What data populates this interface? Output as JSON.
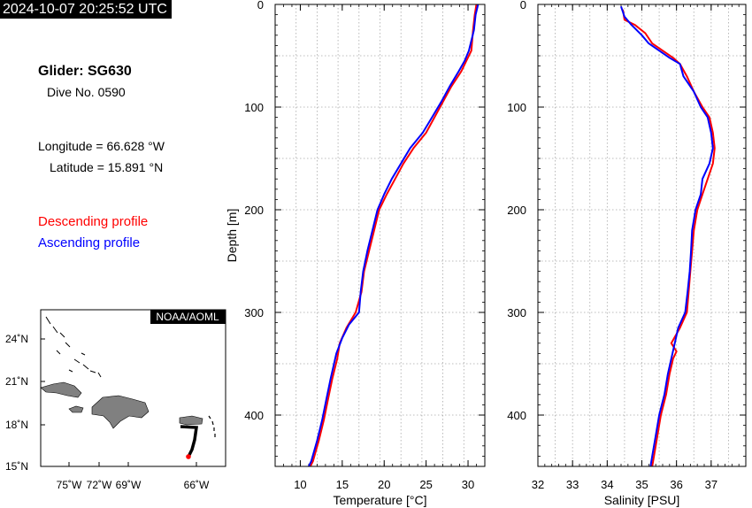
{
  "header": {
    "timestamp": "2024-10-07 20:25:52 UTC",
    "glider_label": "Glider: SG630",
    "dive_label": "Dive No. 0590",
    "longitude_label": "Longitude = 66.628 °W",
    "latitude_label": "Latitude = 15.891 °N"
  },
  "legend": {
    "descending": "Descending profile",
    "ascending": "Ascending profile"
  },
  "colors": {
    "descending": "#ff0000",
    "ascending": "#0000ff",
    "land": "#808080",
    "track": "#000000"
  },
  "map": {
    "badge": "NOAA/AOML",
    "lon_ticks": [
      "75˚W",
      "72˚W",
      "69˚W",
      "66˚W"
    ],
    "lat_ticks": [
      "24˚N",
      "21˚N",
      "18˚N",
      "15˚N"
    ]
  },
  "chart_data": [
    {
      "type": "line",
      "xlabel": "Temperature [°C]",
      "ylabel": "Depth [m]",
      "xlim": [
        7,
        32
      ],
      "ylim": [
        450,
        0
      ],
      "x_ticks": [
        10,
        15,
        20,
        25,
        30
      ],
      "y_ticks": [
        0,
        100,
        200,
        300,
        400
      ],
      "grid": true,
      "series": [
        {
          "name": "Descending profile",
          "color": "#ff0000",
          "points": [
            [
              31.0,
              0
            ],
            [
              30.8,
              10
            ],
            [
              30.6,
              25
            ],
            [
              30.4,
              45
            ],
            [
              29.8,
              55
            ],
            [
              29.2,
              65
            ],
            [
              28.0,
              80
            ],
            [
              27.0,
              95
            ],
            [
              26.0,
              110
            ],
            [
              25.0,
              125
            ],
            [
              23.5,
              140
            ],
            [
              22.3,
              155
            ],
            [
              21.3,
              170
            ],
            [
              20.3,
              185
            ],
            [
              19.4,
              200
            ],
            [
              18.8,
              220
            ],
            [
              18.2,
              240
            ],
            [
              17.6,
              260
            ],
            [
              17.3,
              280
            ],
            [
              16.6,
              300
            ],
            [
              15.5,
              315
            ],
            [
              14.7,
              330
            ],
            [
              14.4,
              345
            ],
            [
              13.8,
              365
            ],
            [
              13.3,
              385
            ],
            [
              12.8,
              405
            ],
            [
              12.2,
              425
            ],
            [
              11.5,
              445
            ],
            [
              11.2,
              450
            ]
          ]
        },
        {
          "name": "Ascending profile",
          "color": "#0000ff",
          "points": [
            [
              31.2,
              0
            ],
            [
              30.9,
              10
            ],
            [
              30.7,
              25
            ],
            [
              30.1,
              45
            ],
            [
              29.6,
              55
            ],
            [
              28.9,
              65
            ],
            [
              27.8,
              80
            ],
            [
              26.8,
              95
            ],
            [
              25.7,
              110
            ],
            [
              24.6,
              125
            ],
            [
              23.1,
              140
            ],
            [
              22.0,
              155
            ],
            [
              20.9,
              170
            ],
            [
              20.0,
              185
            ],
            [
              19.2,
              200
            ],
            [
              18.6,
              220
            ],
            [
              18.0,
              240
            ],
            [
              17.5,
              260
            ],
            [
              17.2,
              280
            ],
            [
              17.0,
              300
            ],
            [
              15.8,
              312
            ],
            [
              15.0,
              325
            ],
            [
              14.3,
              340
            ],
            [
              13.6,
              365
            ],
            [
              13.1,
              385
            ],
            [
              12.6,
              405
            ],
            [
              12.0,
              425
            ],
            [
              11.3,
              445
            ],
            [
              11.0,
              450
            ]
          ]
        }
      ]
    },
    {
      "type": "line",
      "xlabel": "Salinity [PSU]",
      "ylabel": "",
      "xlim": [
        32,
        38
      ],
      "ylim": [
        450,
        0
      ],
      "x_ticks": [
        32,
        33,
        34,
        35,
        36,
        37
      ],
      "y_ticks": [
        0,
        100,
        200,
        300,
        400
      ],
      "grid": true,
      "series": [
        {
          "name": "Descending profile",
          "color": "#ff0000",
          "points": [
            [
              34.45,
              5
            ],
            [
              34.5,
              15
            ],
            [
              34.8,
              20
            ],
            [
              35.1,
              28
            ],
            [
              35.3,
              38
            ],
            [
              35.6,
              45
            ],
            [
              35.9,
              52
            ],
            [
              36.1,
              58
            ],
            [
              36.3,
              70
            ],
            [
              36.5,
              85
            ],
            [
              36.75,
              100
            ],
            [
              36.95,
              110
            ],
            [
              37.05,
              125
            ],
            [
              37.1,
              140
            ],
            [
              37.05,
              155
            ],
            [
              36.9,
              170
            ],
            [
              36.75,
              185
            ],
            [
              36.6,
              200
            ],
            [
              36.5,
              220
            ],
            [
              36.45,
              240
            ],
            [
              36.4,
              260
            ],
            [
              36.35,
              280
            ],
            [
              36.3,
              300
            ],
            [
              36.1,
              315
            ],
            [
              35.85,
              330
            ],
            [
              36.0,
              338
            ],
            [
              35.9,
              345
            ],
            [
              35.8,
              360
            ],
            [
              35.7,
              380
            ],
            [
              35.55,
              400
            ],
            [
              35.45,
              420
            ],
            [
              35.35,
              440
            ],
            [
              35.3,
              450
            ]
          ]
        },
        {
          "name": "Ascending profile",
          "color": "#0000ff",
          "points": [
            [
              34.4,
              2
            ],
            [
              34.5,
              12
            ],
            [
              34.7,
              20
            ],
            [
              35.0,
              30
            ],
            [
              35.2,
              38
            ],
            [
              35.5,
              45
            ],
            [
              35.8,
              52
            ],
            [
              36.1,
              58
            ],
            [
              36.2,
              70
            ],
            [
              36.5,
              85
            ],
            [
              36.7,
              100
            ],
            [
              36.9,
              110
            ],
            [
              37.0,
              125
            ],
            [
              37.05,
              140
            ],
            [
              36.95,
              155
            ],
            [
              36.75,
              170
            ],
            [
              36.7,
              185
            ],
            [
              36.55,
              200
            ],
            [
              36.45,
              220
            ],
            [
              36.42,
              240
            ],
            [
              36.38,
              260
            ],
            [
              36.32,
              280
            ],
            [
              36.25,
              300
            ],
            [
              36.05,
              315
            ],
            [
              35.95,
              330
            ],
            [
              35.85,
              345
            ],
            [
              35.75,
              360
            ],
            [
              35.65,
              380
            ],
            [
              35.5,
              400
            ],
            [
              35.4,
              420
            ],
            [
              35.3,
              440
            ],
            [
              35.25,
              450
            ]
          ]
        }
      ]
    }
  ]
}
